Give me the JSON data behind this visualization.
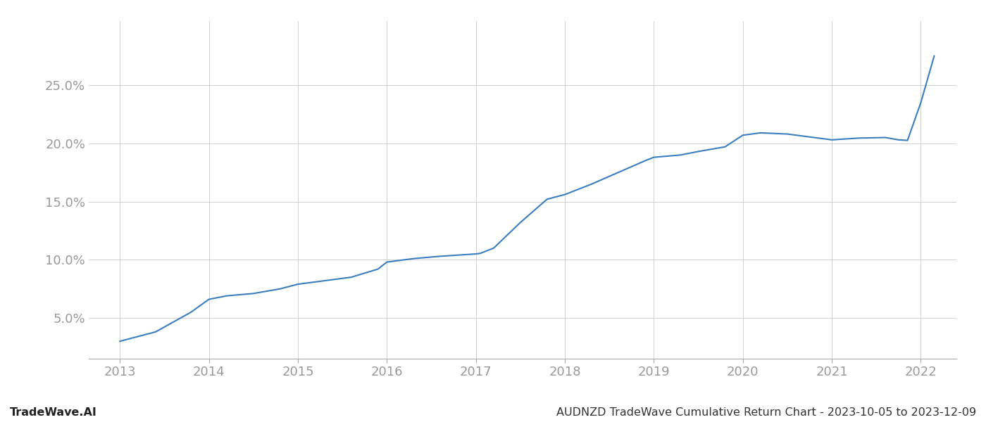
{
  "x_years": [
    2013.0,
    2013.4,
    2013.8,
    2014.0,
    2014.2,
    2014.5,
    2014.8,
    2015.0,
    2015.3,
    2015.6,
    2015.9,
    2016.0,
    2016.3,
    2016.6,
    2016.8,
    2017.0,
    2017.05,
    2017.2,
    2017.5,
    2017.8,
    2018.0,
    2018.3,
    2018.6,
    2018.9,
    2019.0,
    2019.3,
    2019.5,
    2019.8,
    2020.0,
    2020.2,
    2020.5,
    2020.8,
    2021.0,
    2021.3,
    2021.6,
    2021.75,
    2021.85,
    2022.0,
    2022.15
  ],
  "y_values": [
    3.0,
    3.8,
    5.5,
    6.6,
    6.9,
    7.1,
    7.5,
    7.9,
    8.2,
    8.5,
    9.2,
    9.8,
    10.1,
    10.3,
    10.4,
    10.5,
    10.55,
    11.0,
    13.2,
    15.2,
    15.6,
    16.5,
    17.5,
    18.5,
    18.8,
    19.0,
    19.3,
    19.7,
    20.7,
    20.9,
    20.8,
    20.5,
    20.3,
    20.45,
    20.5,
    20.3,
    20.25,
    23.5,
    27.5
  ],
  "line_color": "#3a7ebf",
  "line_width": 1.5,
  "x_ticks": [
    2013,
    2014,
    2015,
    2016,
    2017,
    2018,
    2019,
    2020,
    2021,
    2022
  ],
  "y_ticks": [
    5.0,
    10.0,
    15.0,
    20.0,
    25.0
  ],
  "xlim": [
    2012.65,
    2022.4
  ],
  "ylim": [
    1.5,
    30.5
  ],
  "background_color": "#ffffff",
  "grid_color": "#d0d0d0",
  "footer_left": "TradeWave.AI",
  "footer_right": "AUDNZD TradeWave Cumulative Return Chart - 2023-10-05 to 2023-12-09",
  "tick_color": "#999999",
  "tick_fontsize": 13,
  "footer_fontsize": 11.5
}
